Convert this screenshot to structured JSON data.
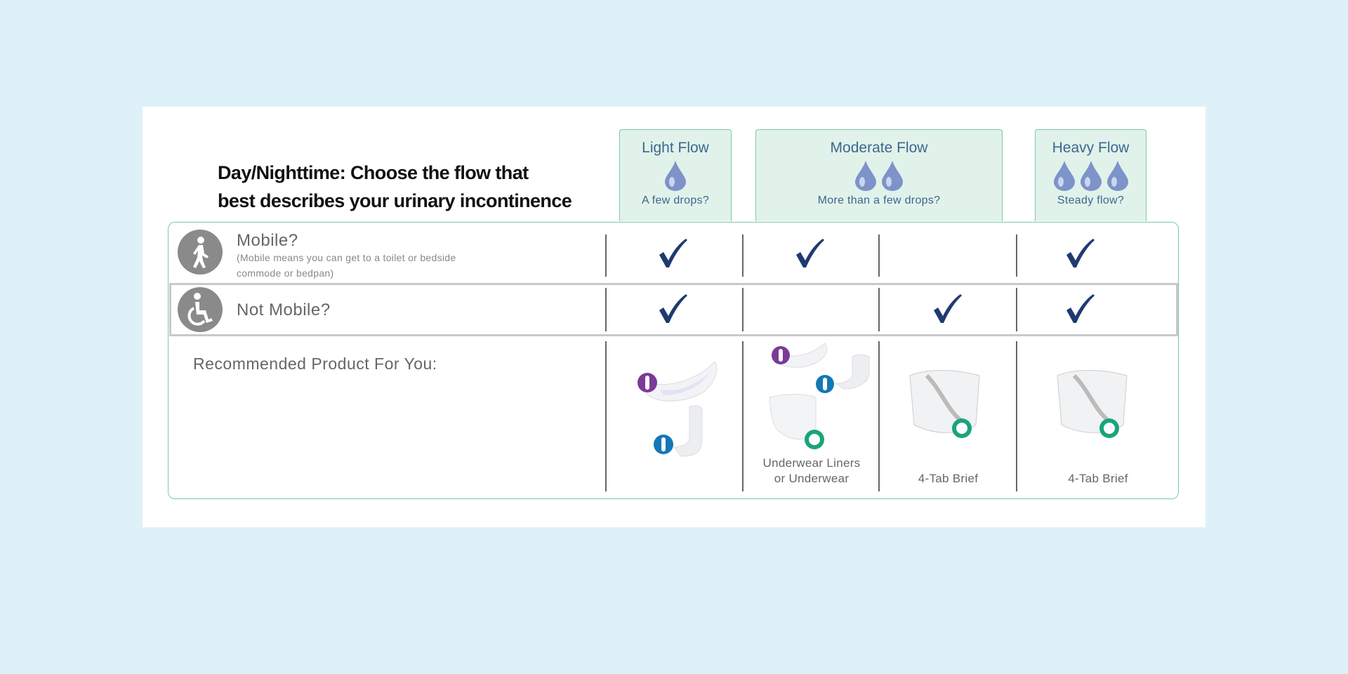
{
  "heading": {
    "line1": "Day/Nighttime: Choose the flow that",
    "line2": "best describes your urinary incontinence"
  },
  "flows": [
    {
      "label": "Light Flow",
      "drops": 1,
      "subtitle": "A few drops?"
    },
    {
      "label": "Moderate Flow",
      "drops": 2,
      "subtitle": "More than a few drops?"
    },
    {
      "label": "Heavy Flow",
      "drops": 3,
      "subtitle": "Steady flow?"
    }
  ],
  "rows": {
    "mobile": {
      "label": "Mobile?",
      "note_line1": "(Mobile means you can get to a toilet or bedside",
      "note_line2": "commode or bedpan)",
      "icon": "walking-person-icon",
      "checks": [
        true,
        true,
        false,
        true
      ]
    },
    "not_mobile": {
      "label": "Not Mobile?",
      "icon": "wheelchair-icon",
      "checks": [
        true,
        false,
        true,
        true
      ]
    },
    "recommended": {
      "label": "Recommended Product For You:"
    }
  },
  "products": [
    {
      "label": ""
    },
    {
      "label_line1": "Underwear Liners",
      "label_line2": "or Underwear"
    },
    {
      "label": "4-Tab Brief"
    },
    {
      "label": "4-Tab Brief"
    }
  ],
  "colors": {
    "check": "#1f3a70",
    "header_bg": "#e1f2ea",
    "border": "#7cc9a9",
    "female_badge": "#7b3a96",
    "male_badge": "#1577b8",
    "unisex_badge": "#1aa47a"
  }
}
